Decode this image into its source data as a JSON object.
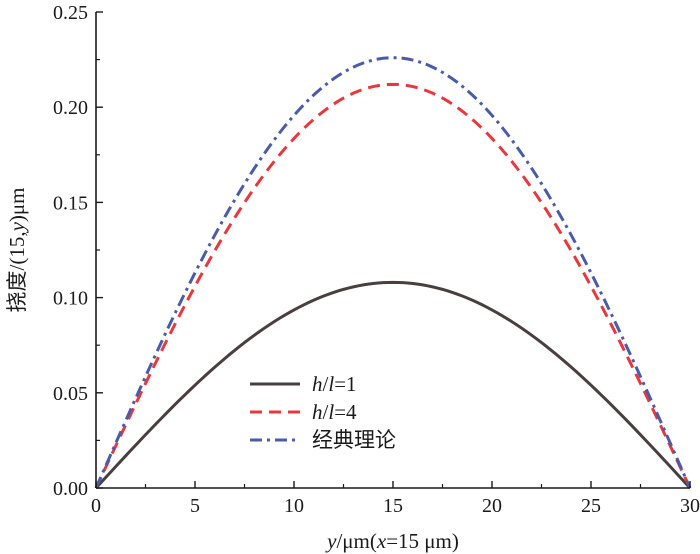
{
  "chart_data": {
    "type": "line",
    "xlabel_parts": [
      {
        "text": "y",
        "italic": true
      },
      {
        "text": "/μm(",
        "italic": false
      },
      {
        "text": "x",
        "italic": true
      },
      {
        "text": "=15 μm)",
        "italic": false
      }
    ],
    "ylabel_parts": [
      {
        "text": "挠度/(15,",
        "italic": false
      },
      {
        "text": "y",
        "italic": true
      },
      {
        "text": ")μm",
        "italic": false
      }
    ],
    "xlim": [
      0,
      30
    ],
    "ylim": [
      0,
      0.25
    ],
    "xticks": [
      0,
      5,
      10,
      15,
      20,
      25,
      30
    ],
    "xtick_labels": [
      "0",
      "5",
      "10",
      "15",
      "20",
      "25",
      "30"
    ],
    "yticks": [
      0,
      0.05,
      0.1,
      0.15,
      0.2,
      0.25
    ],
    "ytick_labels": [
      "0.00",
      "0.05",
      "0.10",
      "0.15",
      "0.20",
      "0.25"
    ],
    "grid": false,
    "legend_position": "lower-left",
    "series": [
      {
        "name_parts": [
          {
            "text": "h",
            "italic": true
          },
          {
            "text": "/",
            "italic": false
          },
          {
            "text": "l",
            "italic": true
          },
          {
            "text": "=1",
            "italic": false
          }
        ],
        "style": "solid",
        "color": "#4a3f3f",
        "shape": "sine",
        "peak": 0.108
      },
      {
        "name_parts": [
          {
            "text": "h",
            "italic": true
          },
          {
            "text": "/",
            "italic": false
          },
          {
            "text": "l",
            "italic": true
          },
          {
            "text": "=4",
            "italic": false
          }
        ],
        "style": "dashed",
        "color": "#e8383d",
        "shape": "sine",
        "peak": 0.212
      },
      {
        "name_parts": [
          {
            "text": "经典理论",
            "italic": false
          }
        ],
        "style": "dashdot",
        "color": "#4a5ba8",
        "shape": "sine",
        "peak": 0.226
      }
    ]
  }
}
